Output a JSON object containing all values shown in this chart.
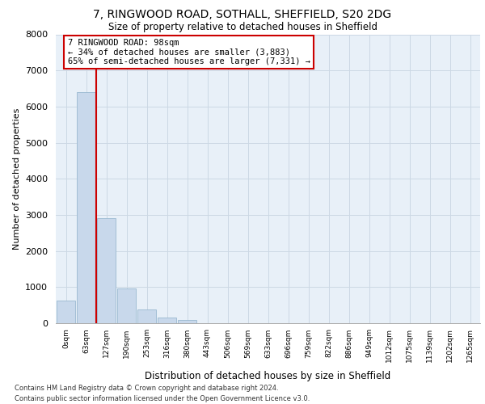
{
  "title_line1": "7, RINGWOOD ROAD, SOTHALL, SHEFFIELD, S20 2DG",
  "title_line2": "Size of property relative to detached houses in Sheffield",
  "xlabel": "Distribution of detached houses by size in Sheffield",
  "ylabel": "Number of detached properties",
  "bar_labels": [
    "0sqm",
    "63sqm",
    "127sqm",
    "190sqm",
    "253sqm",
    "316sqm",
    "380sqm",
    "443sqm",
    "506sqm",
    "569sqm",
    "633sqm",
    "696sqm",
    "759sqm",
    "822sqm",
    "886sqm",
    "949sqm",
    "1012sqm",
    "1075sqm",
    "1139sqm",
    "1202sqm",
    "1265sqm"
  ],
  "bar_values": [
    620,
    6400,
    2920,
    960,
    370,
    150,
    80,
    0,
    0,
    0,
    0,
    0,
    0,
    0,
    0,
    0,
    0,
    0,
    0,
    0,
    0
  ],
  "bar_color": "#c8d8eb",
  "bar_edge_color": "#9ab8d0",
  "vline_color": "#cc0000",
  "vline_pos": 1.5,
  "annotation_text": "7 RINGWOOD ROAD: 98sqm\n← 34% of detached houses are smaller (3,883)\n65% of semi-detached houses are larger (7,331) →",
  "annotation_box_color": "#ffffff",
  "annotation_box_edge": "#cc0000",
  "ylim": [
    0,
    8000
  ],
  "yticks": [
    0,
    1000,
    2000,
    3000,
    4000,
    5000,
    6000,
    7000,
    8000
  ],
  "grid_color": "#ccd8e4",
  "bg_color": "#e8f0f8",
  "footer_line1": "Contains HM Land Registry data © Crown copyright and database right 2024.",
  "footer_line2": "Contains public sector information licensed under the Open Government Licence v3.0."
}
